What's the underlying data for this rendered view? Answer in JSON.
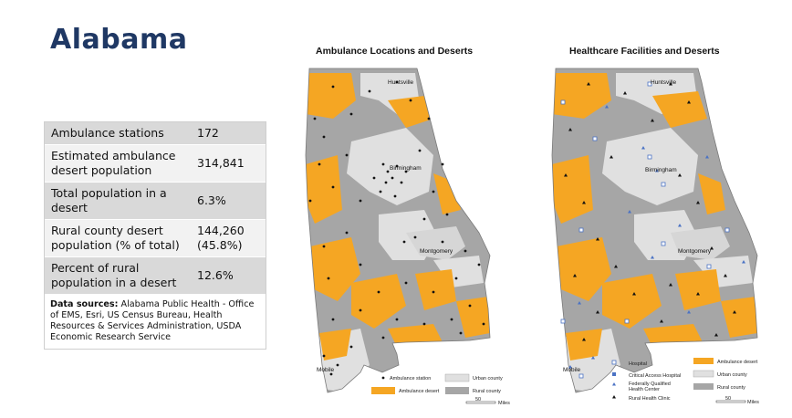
{
  "page_title": "Alabama",
  "stats": [
    {
      "label": "Ambulance stations",
      "value": "172"
    },
    {
      "label": "Estimated ambulance desert population",
      "value": "314,841"
    },
    {
      "label": "Total population in a desert",
      "value": "6.3%"
    },
    {
      "label": "Rural county desert population (% of total)",
      "value": "144,260 (45.8%)"
    },
    {
      "label": "Percent of rural population in a desert",
      "value": "12.6%"
    }
  ],
  "sources_label": "Data sources:",
  "sources_text": "Alabama Public Health - Office of EMS, Esri, US Census Bureau, Health Resources & Services Administration, USDA Economic Research Service",
  "map_left": {
    "title": "Ambulance Locations and Deserts",
    "cities": [
      "Huntsville",
      "Birmingham",
      "Montgomery",
      "Mobile"
    ],
    "legend": {
      "ambulance_station": "Ambulance station",
      "urban_county": "Urban county",
      "ambulance_desert": "Ambulance desert",
      "rural_county": "Rural county",
      "scale_value": "50",
      "scale_unit": "Miles"
    }
  },
  "map_right": {
    "title": "Healthcare Facilities and Deserts",
    "cities": [
      "Huntsville",
      "Birmingham",
      "Montgomery",
      "Mobile"
    ],
    "legend": {
      "hospital": "Hospital",
      "critical_access": "Critical Access Hospital",
      "fqhc_line1": "Federally Qualified",
      "fqhc_line2": "Health Center",
      "rural_clinic": "Rural Health Clinic",
      "ambulance_desert": "Ambulance desert",
      "urban_county": "Urban county",
      "rural_county": "Rural county",
      "scale_value": "50",
      "scale_unit": "Miles"
    }
  },
  "colors": {
    "title": "#1f3864",
    "desert": "#f5a623",
    "rural": "#a6a6a6",
    "urban": "#e0e0e0",
    "hospital_blue": "#4a72c4"
  }
}
